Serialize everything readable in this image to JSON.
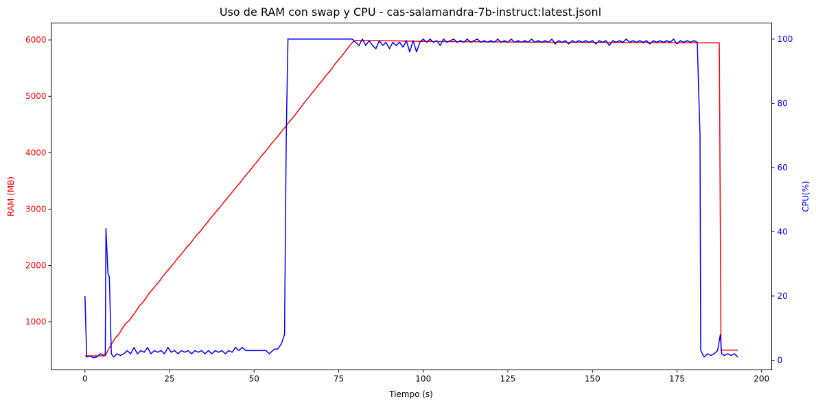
{
  "chart_data": {
    "type": "line",
    "title": "Uso de RAM con swap y CPU - cas-salamandra-7b-instruct:latest.jsonl",
    "xlabel": "Tiempo (s)",
    "ylabel_left": "RAM (MB)",
    "ylabel_right": "CPU(%)",
    "xlim": [
      -10,
      203
    ],
    "ylim_left": [
      150,
      6300
    ],
    "ylim_right": [
      -3,
      105
    ],
    "x_ticks": [
      0,
      25,
      50,
      75,
      100,
      125,
      150,
      175,
      200
    ],
    "y_left_ticks": [
      1000,
      2000,
      3000,
      4000,
      5000,
      6000
    ],
    "y_right_ticks": [
      0,
      20,
      40,
      60,
      80,
      100
    ],
    "grid": false,
    "colors": {
      "ram": "#ff0000",
      "cpu": "#0000ff",
      "axes": "#000000"
    },
    "series": [
      {
        "axis": "left",
        "color": "#ff0000",
        "points": [
          [
            0,
            400
          ],
          [
            6,
            400
          ],
          [
            7,
            520
          ],
          [
            8,
            620
          ],
          [
            9,
            720
          ],
          [
            10,
            780
          ],
          [
            11,
            880
          ],
          [
            12,
            970
          ],
          [
            13,
            1020
          ],
          [
            14,
            1100
          ],
          [
            15,
            1180
          ],
          [
            16,
            1280
          ],
          [
            17,
            1340
          ],
          [
            18,
            1420
          ],
          [
            19,
            1510
          ],
          [
            20,
            1580
          ],
          [
            21,
            1650
          ],
          [
            22,
            1720
          ],
          [
            23,
            1810
          ],
          [
            24,
            1880
          ],
          [
            25,
            1950
          ],
          [
            26,
            2020
          ],
          [
            27,
            2100
          ],
          [
            28,
            2170
          ],
          [
            29,
            2240
          ],
          [
            30,
            2320
          ],
          [
            31,
            2380
          ],
          [
            32,
            2460
          ],
          [
            33,
            2540
          ],
          [
            34,
            2600
          ],
          [
            35,
            2680
          ],
          [
            36,
            2750
          ],
          [
            37,
            2830
          ],
          [
            38,
            2900
          ],
          [
            39,
            2970
          ],
          [
            40,
            3040
          ],
          [
            41,
            3120
          ],
          [
            42,
            3190
          ],
          [
            43,
            3260
          ],
          [
            44,
            3340
          ],
          [
            45,
            3410
          ],
          [
            46,
            3480
          ],
          [
            47,
            3560
          ],
          [
            48,
            3630
          ],
          [
            49,
            3700
          ],
          [
            50,
            3780
          ],
          [
            51,
            3850
          ],
          [
            52,
            3930
          ],
          [
            53,
            4000
          ],
          [
            54,
            4070
          ],
          [
            55,
            4150
          ],
          [
            56,
            4220
          ],
          [
            57,
            4290
          ],
          [
            58,
            4370
          ],
          [
            59,
            4440
          ],
          [
            60,
            4520
          ],
          [
            61,
            4590
          ],
          [
            62,
            4660
          ],
          [
            63,
            4740
          ],
          [
            64,
            4820
          ],
          [
            65,
            4900
          ],
          [
            66,
            4970
          ],
          [
            67,
            5050
          ],
          [
            68,
            5120
          ],
          [
            69,
            5200
          ],
          [
            70,
            5270
          ],
          [
            71,
            5350
          ],
          [
            72,
            5420
          ],
          [
            73,
            5490
          ],
          [
            74,
            5580
          ],
          [
            75,
            5650
          ],
          [
            76,
            5720
          ],
          [
            77,
            5800
          ],
          [
            78,
            5880
          ],
          [
            79,
            5950
          ],
          [
            79.5,
            5980
          ],
          [
            80,
            5990
          ],
          [
            90,
            5985
          ],
          [
            100,
            5975
          ],
          [
            110,
            5970
          ],
          [
            120,
            5965
          ],
          [
            130,
            5960
          ],
          [
            140,
            5958
          ],
          [
            150,
            5955
          ],
          [
            160,
            5952
          ],
          [
            170,
            5950
          ],
          [
            180,
            5948
          ],
          [
            186,
            5948
          ],
          [
            187.5,
            5948
          ],
          [
            188,
            500
          ],
          [
            193,
            500
          ]
        ]
      },
      {
        "axis": "right",
        "color": "#0000ff",
        "points": [
          [
            0,
            20
          ],
          [
            0.5,
            1
          ],
          [
            1.5,
            1.3
          ],
          [
            2.5,
            0.8
          ],
          [
            3.5,
            1
          ],
          [
            4.5,
            2
          ],
          [
            5.5,
            1.5
          ],
          [
            6,
            2
          ],
          [
            6.2,
            41
          ],
          [
            6.8,
            27
          ],
          [
            7.2,
            26
          ],
          [
            7.8,
            2
          ],
          [
            8.5,
            1
          ],
          [
            9.5,
            2
          ],
          [
            10.5,
            1.5
          ],
          [
            11.5,
            2
          ],
          [
            12.5,
            3
          ],
          [
            13.5,
            2
          ],
          [
            14.5,
            4
          ],
          [
            15.5,
            2
          ],
          [
            16.5,
            3
          ],
          [
            17.5,
            2.5
          ],
          [
            18.5,
            4
          ],
          [
            19.5,
            2
          ],
          [
            20.5,
            3
          ],
          [
            21.5,
            2.5
          ],
          [
            22.5,
            3
          ],
          [
            23.5,
            2
          ],
          [
            24.5,
            4
          ],
          [
            25.5,
            2.5
          ],
          [
            26.5,
            3
          ],
          [
            27.5,
            2
          ],
          [
            28.5,
            3
          ],
          [
            29.5,
            2.5
          ],
          [
            30.5,
            3
          ],
          [
            31.5,
            2
          ],
          [
            32.5,
            3
          ],
          [
            33.5,
            2.5
          ],
          [
            34.5,
            3
          ],
          [
            35.5,
            2
          ],
          [
            36.5,
            3
          ],
          [
            37.5,
            2
          ],
          [
            38.5,
            3
          ],
          [
            39.5,
            2.5
          ],
          [
            40.5,
            3
          ],
          [
            41.5,
            2
          ],
          [
            42.5,
            3
          ],
          [
            43.5,
            2.5
          ],
          [
            44.5,
            4
          ],
          [
            45.5,
            3
          ],
          [
            46.5,
            4
          ],
          [
            47.5,
            3
          ],
          [
            48.5,
            3
          ],
          [
            49.5,
            3
          ],
          [
            50.5,
            3
          ],
          [
            51.5,
            3
          ],
          [
            52.5,
            3
          ],
          [
            53.5,
            3
          ],
          [
            54.5,
            2
          ],
          [
            55.5,
            3
          ],
          [
            56,
            3.5
          ],
          [
            57,
            3.5
          ],
          [
            58,
            5
          ],
          [
            59,
            8
          ],
          [
            59.5,
            70
          ],
          [
            60,
            100
          ],
          [
            62,
            100
          ],
          [
            64,
            100
          ],
          [
            66,
            100
          ],
          [
            70,
            100
          ],
          [
            75,
            100
          ],
          [
            79,
            100
          ],
          [
            80,
            99
          ],
          [
            81,
            98
          ],
          [
            82,
            100
          ],
          [
            83,
            98
          ],
          [
            84,
            99.5
          ],
          [
            85,
            98
          ],
          [
            86,
            97
          ],
          [
            87,
            99.5
          ],
          [
            88,
            98
          ],
          [
            89,
            99
          ],
          [
            90,
            97
          ],
          [
            91,
            99
          ],
          [
            92,
            98
          ],
          [
            93,
            99
          ],
          [
            94,
            97.5
          ],
          [
            95,
            99.5
          ],
          [
            96,
            96
          ],
          [
            97,
            99.5
          ],
          [
            98,
            96
          ],
          [
            99,
            99
          ],
          [
            100,
            100
          ],
          [
            101,
            99
          ],
          [
            102,
            100
          ],
          [
            103,
            99
          ],
          [
            104,
            99.5
          ],
          [
            105,
            98
          ],
          [
            106,
            100
          ],
          [
            107,
            99
          ],
          [
            108,
            99.5
          ],
          [
            109,
            100
          ],
          [
            110,
            99
          ],
          [
            111,
            99.5
          ],
          [
            112,
            99
          ],
          [
            113,
            100
          ],
          [
            114,
            99
          ],
          [
            115,
            99.5
          ],
          [
            116,
            100
          ],
          [
            117,
            99
          ],
          [
            118,
            99.5
          ],
          [
            119,
            99
          ],
          [
            120,
            99.5
          ],
          [
            121,
            99
          ],
          [
            122,
            100
          ],
          [
            123,
            99
          ],
          [
            124,
            99.5
          ],
          [
            125,
            99
          ],
          [
            126,
            100
          ],
          [
            127,
            99
          ],
          [
            128,
            99.5
          ],
          [
            129,
            99
          ],
          [
            130,
            99.5
          ],
          [
            131,
            99
          ],
          [
            132,
            100
          ],
          [
            133,
            99
          ],
          [
            134,
            99.5
          ],
          [
            135,
            99
          ],
          [
            136,
            99.5
          ],
          [
            137,
            99
          ],
          [
            138,
            100
          ],
          [
            139,
            98.5
          ],
          [
            140,
            99.5
          ],
          [
            141,
            99
          ],
          [
            142,
            99.5
          ],
          [
            143,
            98.5
          ],
          [
            144,
            99.5
          ],
          [
            145,
            99
          ],
          [
            146,
            99.5
          ],
          [
            147,
            99
          ],
          [
            148,
            99.5
          ],
          [
            149,
            99
          ],
          [
            150,
            99.5
          ],
          [
            151,
            98.5
          ],
          [
            152,
            99.5
          ],
          [
            153,
            99
          ],
          [
            154,
            99.5
          ],
          [
            155,
            98
          ],
          [
            156,
            99.5
          ],
          [
            157,
            99
          ],
          [
            158,
            99.5
          ],
          [
            159,
            99
          ],
          [
            160,
            100
          ],
          [
            161,
            99
          ],
          [
            162,
            99.5
          ],
          [
            163,
            99
          ],
          [
            164,
            99.5
          ],
          [
            165,
            99
          ],
          [
            166,
            99.5
          ],
          [
            167,
            98.5
          ],
          [
            168,
            99.5
          ],
          [
            169,
            99
          ],
          [
            170,
            99.5
          ],
          [
            171,
            99
          ],
          [
            172,
            99.5
          ],
          [
            173,
            99
          ],
          [
            174,
            100
          ],
          [
            175,
            98.5
          ],
          [
            176,
            99.5
          ],
          [
            177,
            99
          ],
          [
            178,
            99.5
          ],
          [
            179,
            99
          ],
          [
            180,
            99.5
          ],
          [
            181,
            99
          ],
          [
            181.8,
            70
          ],
          [
            182,
            3
          ],
          [
            183,
            1
          ],
          [
            184,
            2
          ],
          [
            185,
            1.5
          ],
          [
            186,
            2
          ],
          [
            187,
            3
          ],
          [
            187.8,
            8
          ],
          [
            188.2,
            2
          ],
          [
            189,
            1.5
          ],
          [
            190,
            2
          ],
          [
            191,
            1.5
          ],
          [
            192,
            2
          ],
          [
            193,
            1
          ]
        ]
      }
    ]
  }
}
